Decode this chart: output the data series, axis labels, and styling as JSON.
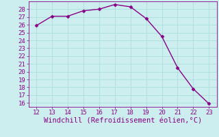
{
  "x": [
    12,
    13,
    14,
    15,
    16,
    17,
    18,
    19,
    20,
    21,
    22,
    23
  ],
  "y": [
    25.9,
    27.1,
    27.1,
    27.8,
    28.0,
    28.6,
    28.3,
    26.8,
    24.5,
    20.5,
    17.8,
    15.9
  ],
  "line_color": "#880088",
  "marker_color": "#880088",
  "bg_color": "#cceeee",
  "grid_color": "#aadddd",
  "xlabel": "Windchill (Refroidissement éolien,°C)",
  "xlabel_color": "#880088",
  "xlim": [
    11.5,
    23.5
  ],
  "ylim": [
    15.5,
    29.0
  ],
  "xticks": [
    12,
    13,
    14,
    15,
    16,
    17,
    18,
    19,
    20,
    21,
    22,
    23
  ],
  "yticks": [
    16,
    17,
    18,
    19,
    20,
    21,
    22,
    23,
    24,
    25,
    26,
    27,
    28
  ],
  "tick_color": "#880088",
  "tick_fontsize": 6.5,
  "xlabel_fontsize": 7.5
}
